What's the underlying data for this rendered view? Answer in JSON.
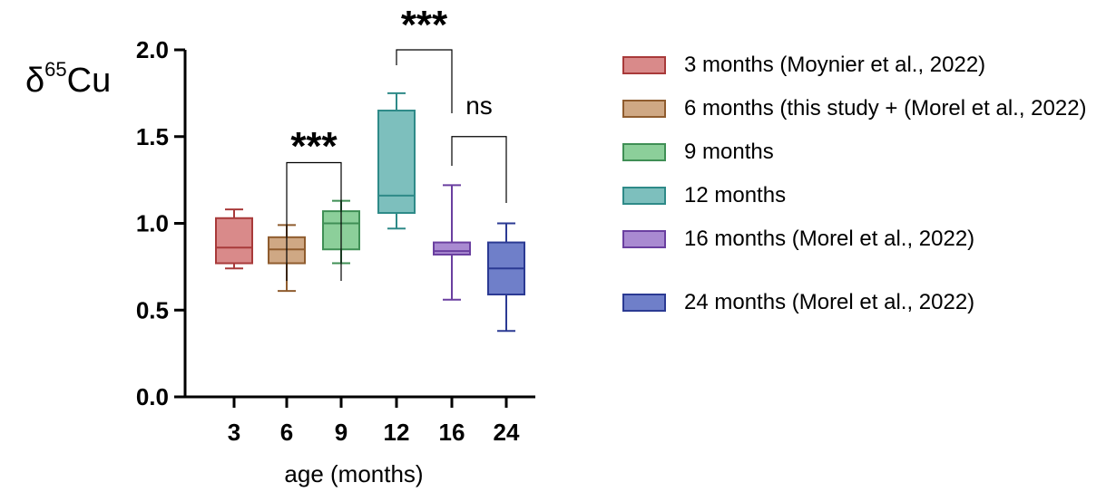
{
  "chart_data": {
    "type": "box",
    "ylabel": {
      "main": "δ",
      "sup": "65",
      "rest": "Cu"
    },
    "xlabel": "age (months)",
    "ylim": [
      0,
      2.0
    ],
    "yticks": [
      "0.0",
      "0.5",
      "1.0",
      "1.5",
      "2.0"
    ],
    "categories": [
      "3",
      "6",
      "9",
      "12",
      "16",
      "24"
    ],
    "series": [
      {
        "name": "3 months (Moynier et al., 2022)",
        "category": "3",
        "min": 0.74,
        "q1": 0.77,
        "median": 0.86,
        "q3": 1.03,
        "max": 1.08,
        "fill": "#d98a8a",
        "stroke": "#a83a3a"
      },
      {
        "name": "6 months (this study + (Morel et al., 2022)",
        "category": "6",
        "min": 0.61,
        "q1": 0.77,
        "median": 0.85,
        "q3": 0.92,
        "max": 0.99,
        "fill": "#cfa884",
        "stroke": "#8f5c2e"
      },
      {
        "name": "9 months",
        "category": "9",
        "min": 0.77,
        "q1": 0.85,
        "median": 1.0,
        "q3": 1.07,
        "max": 1.13,
        "fill": "#8ccf9a",
        "stroke": "#3f8f55"
      },
      {
        "name": "12 months",
        "category": "12",
        "min": 0.97,
        "q1": 1.06,
        "median": 1.16,
        "q3": 1.65,
        "max": 1.75,
        "fill": "#7dbfbd",
        "stroke": "#2e8a88"
      },
      {
        "name": "16 months (Morel et al., 2022)",
        "category": "16",
        "min": 0.56,
        "q1": 0.82,
        "median": 0.84,
        "q3": 0.89,
        "max": 1.22,
        "fill": "#a98ad1",
        "stroke": "#6a3fa0"
      },
      {
        "name": "24 months (Morel et al., 2022)",
        "category": "24",
        "min": 0.38,
        "q1": 0.59,
        "median": 0.74,
        "q3": 0.89,
        "max": 1.0,
        "fill": "#6f7fc9",
        "stroke": "#2b3a93"
      }
    ],
    "annotations": [
      {
        "from": "6",
        "to": "9",
        "label": "***",
        "bar_y": 1.35
      },
      {
        "from": "12",
        "to": "16",
        "label": "***",
        "bar_y": 2.0
      },
      {
        "from": "16",
        "to": "24",
        "label": "ns",
        "bar_y": 1.5
      }
    ]
  }
}
